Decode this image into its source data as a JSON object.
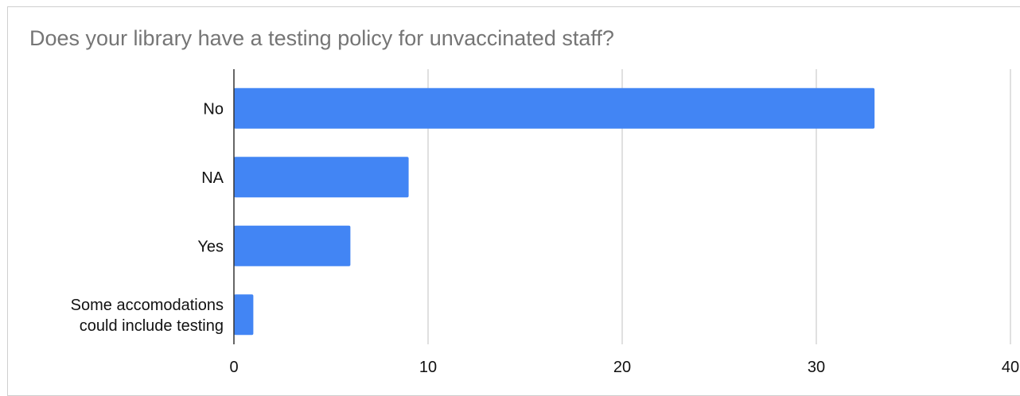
{
  "chart_data": {
    "type": "bar",
    "orientation": "horizontal",
    "title": "Does your library have a testing policy for unvaccinated staff?",
    "categories": [
      [
        "No"
      ],
      [
        "NA"
      ],
      [
        "Yes"
      ],
      [
        "Some accomodations",
        "could include testing"
      ]
    ],
    "values": [
      33,
      9,
      6,
      1
    ],
    "xlim": [
      0,
      40
    ],
    "xticks": [
      0,
      10,
      20,
      30,
      40
    ],
    "grid": true,
    "legend": "none",
    "colors": {
      "bar": "#4285f4",
      "grid": "#cccccc",
      "axis": "#333333"
    }
  }
}
